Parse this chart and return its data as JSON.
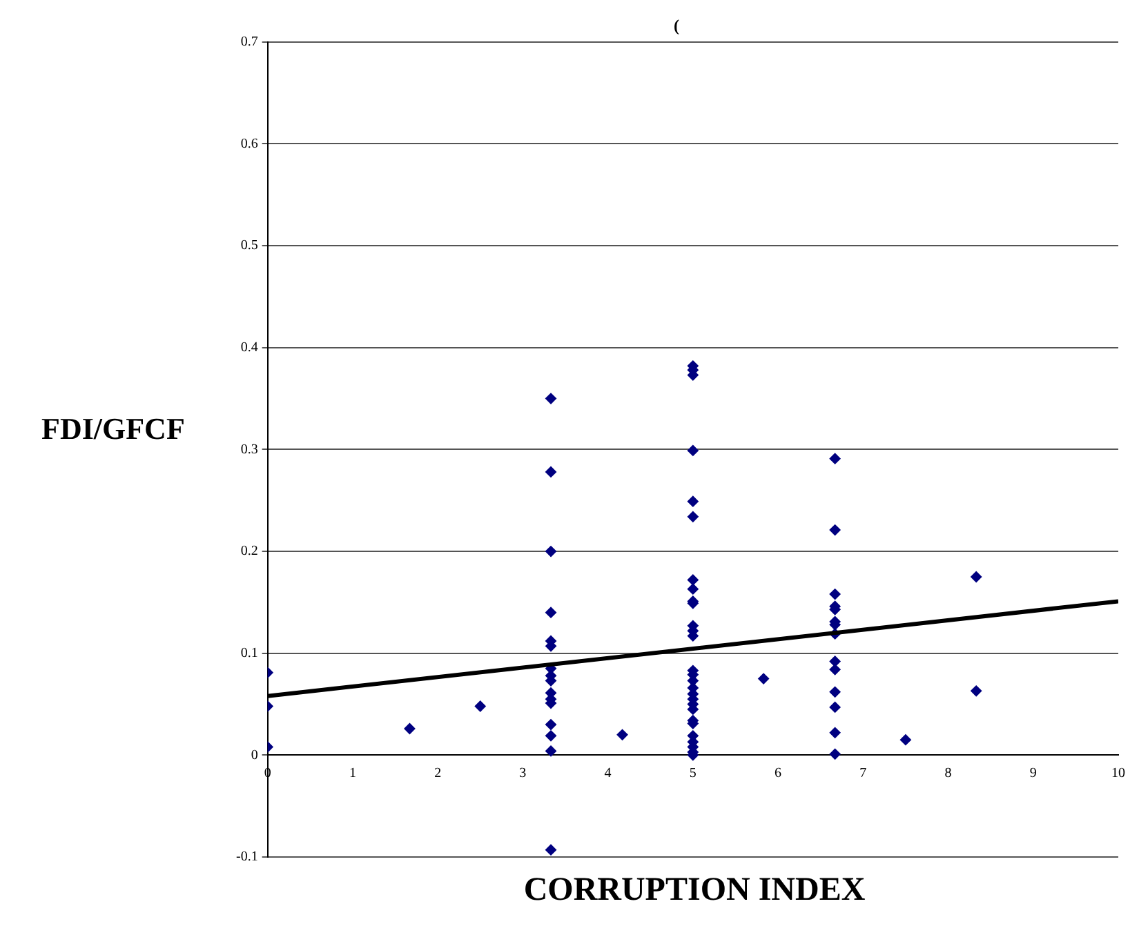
{
  "chart_data": {
    "type": "scatter",
    "title": "(",
    "xlabel": "CORRUPTION INDEX",
    "ylabel": "FDI/GFCF",
    "xlim": [
      0,
      10
    ],
    "xticks": [
      0,
      1,
      2,
      3,
      4,
      5,
      6,
      7,
      8,
      9,
      10
    ],
    "ylim": [
      -0.1,
      0.7
    ],
    "yticks": [
      -0.1,
      0,
      0.1,
      0.2,
      0.3,
      0.4,
      0.5,
      0.6,
      0.7
    ],
    "grid": "y",
    "legend": false,
    "marker": "diamond",
    "series": [
      {
        "type": "scatter",
        "color": "#000080",
        "x": [
          0,
          0,
          0,
          1.67,
          2.5,
          3.33,
          3.33,
          3.33,
          3.33,
          3.33,
          3.33,
          3.33,
          3.33,
          3.33,
          3.33,
          3.33,
          3.33,
          3.33,
          3.33,
          3.33,
          3.33,
          4.17,
          5,
          5,
          5,
          5,
          5,
          5,
          5,
          5,
          5,
          5,
          5,
          5,
          5,
          5,
          5,
          5,
          5,
          5,
          5,
          5,
          5,
          5,
          5,
          5,
          5,
          5,
          5,
          5,
          5.83,
          6.67,
          6.67,
          6.67,
          6.67,
          6.67,
          6.67,
          6.67,
          6.67,
          6.67,
          6.67,
          6.67,
          6.67,
          6.67,
          6.67,
          7.5,
          8.33,
          8.33
        ],
        "values": [
          0.081,
          0.048,
          0.008,
          0.026,
          0.048,
          0.35,
          0.278,
          0.2,
          0.14,
          0.112,
          0.107,
          0.085,
          0.078,
          0.073,
          0.061,
          0.055,
          0.051,
          0.03,
          0.019,
          0.004,
          -0.093,
          0.02,
          0.382,
          0.378,
          0.373,
          0.299,
          0.249,
          0.234,
          0.172,
          0.163,
          0.151,
          0.149,
          0.127,
          0.122,
          0.117,
          0.083,
          0.079,
          0.073,
          0.066,
          0.06,
          0.055,
          0.05,
          0.045,
          0.034,
          0.031,
          0.019,
          0.013,
          0.008,
          0.003,
          0,
          0.075,
          0.291,
          0.221,
          0.158,
          0.146,
          0.143,
          0.131,
          0.128,
          0.119,
          0.092,
          0.084,
          0.062,
          0.047,
          0.022,
          0.001,
          0.015,
          0.175,
          0.063
        ]
      },
      {
        "type": "line",
        "color": "#000000",
        "x": [
          0,
          10
        ],
        "values": [
          0.058,
          0.151
        ],
        "marker": "none"
      }
    ]
  }
}
